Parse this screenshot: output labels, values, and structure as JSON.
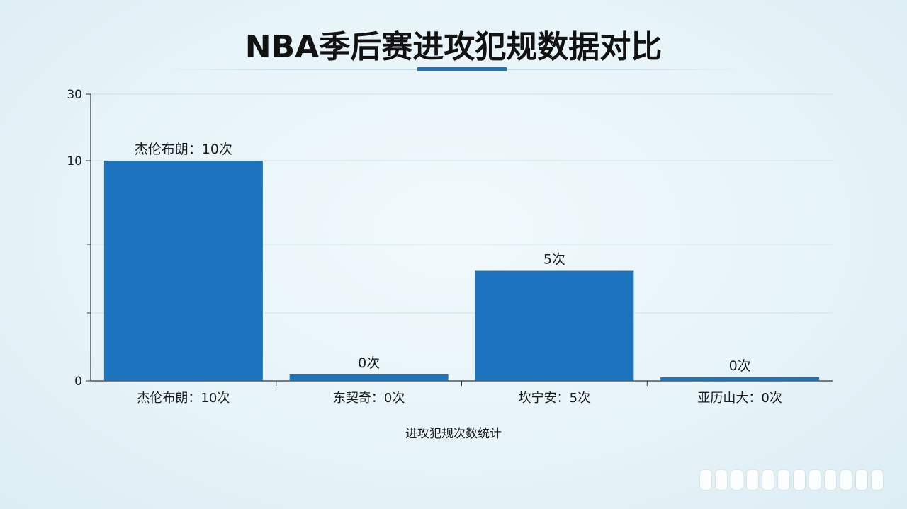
{
  "title": "NBA季后赛进攻犯规数据对比",
  "chart_data": {
    "type": "bar",
    "categories": [
      "杰伦布朗：10次",
      "东契奇：0次",
      "坎宁安：5次",
      "亚历山大：0次"
    ],
    "values": [
      10,
      0,
      5,
      0
    ],
    "data_labels": [
      "杰伦布朗：10次",
      "0次",
      "5次",
      "0次"
    ],
    "xlabel": "进攻犯规次数统计",
    "ylabel": "",
    "y_ticks": [
      "0",
      "10",
      "30"
    ],
    "ylim": [
      0,
      30
    ],
    "grid": true,
    "bar_color": "#1b74bd"
  }
}
